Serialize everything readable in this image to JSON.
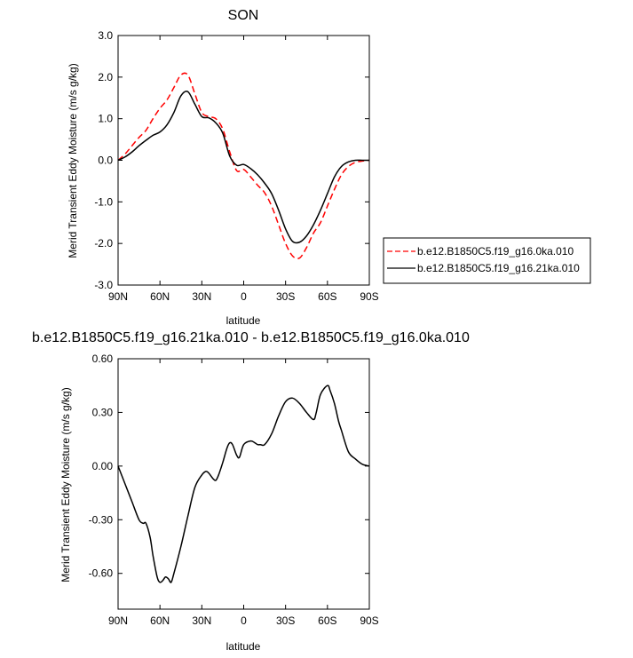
{
  "chart_data": [
    {
      "type": "line",
      "title": "SON",
      "xlabel": "latitude",
      "ylabel": "Merid Transient Eddy Moisture (m/s g/kg)",
      "xlim": [
        90,
        -90
      ],
      "ylim": [
        -3.0,
        3.0
      ],
      "x_ticks": [
        90,
        60,
        30,
        0,
        -30,
        -60,
        -90
      ],
      "x_tick_labels": [
        "90N",
        "60N",
        "30N",
        "0",
        "30S",
        "60S",
        "90S"
      ],
      "y_ticks": [
        3.0,
        2.0,
        1.0,
        0.0,
        -1.0,
        -2.0,
        -3.0
      ],
      "y_tick_labels": [
        "3.0",
        "2.0",
        "1.0",
        "0.0",
        "-1.0",
        "-2.0",
        "-3.0"
      ],
      "legend_position": "outside-right",
      "series": [
        {
          "name": "b.e12.B1850C5.f19_g16.0ka.010",
          "color": "#ff0000",
          "dash": "dashed",
          "x": [
            90,
            85,
            80,
            75,
            70,
            65,
            60,
            55,
            50,
            45,
            40,
            35,
            30,
            25,
            20,
            15,
            10,
            5,
            0,
            -5,
            -10,
            -15,
            -20,
            -25,
            -30,
            -35,
            -40,
            -45,
            -50,
            -55,
            -60,
            -65,
            -70,
            -75,
            -80,
            -85,
            -90
          ],
          "values": [
            0.0,
            0.15,
            0.35,
            0.55,
            0.72,
            1.0,
            1.25,
            1.45,
            1.75,
            2.05,
            2.05,
            1.6,
            1.15,
            1.05,
            1.0,
            0.75,
            0.2,
            -0.25,
            -0.22,
            -0.4,
            -0.6,
            -0.78,
            -1.1,
            -1.55,
            -2.0,
            -2.3,
            -2.35,
            -2.1,
            -1.75,
            -1.5,
            -1.1,
            -0.7,
            -0.35,
            -0.15,
            -0.05,
            -0.02,
            0.0
          ]
        },
        {
          "name": "b.e12.B1850C5.f19_g16.21ka.010",
          "color": "#000000",
          "dash": "solid",
          "x": [
            90,
            85,
            80,
            75,
            70,
            65,
            60,
            55,
            50,
            45,
            40,
            35,
            30,
            25,
            20,
            15,
            10,
            5,
            0,
            -5,
            -10,
            -15,
            -20,
            -25,
            -30,
            -35,
            -40,
            -45,
            -50,
            -55,
            -60,
            -65,
            -70,
            -75,
            -80,
            -85,
            -90
          ],
          "values": [
            0.0,
            0.08,
            0.2,
            0.35,
            0.48,
            0.6,
            0.68,
            0.85,
            1.15,
            1.55,
            1.65,
            1.35,
            1.05,
            1.02,
            0.9,
            0.65,
            0.1,
            -0.12,
            -0.1,
            -0.2,
            -0.35,
            -0.55,
            -0.8,
            -1.2,
            -1.65,
            -1.95,
            -1.97,
            -1.82,
            -1.55,
            -1.2,
            -0.8,
            -0.4,
            -0.15,
            -0.04,
            0.0,
            0.0,
            0.0
          ]
        }
      ]
    },
    {
      "type": "line",
      "title": "b.e12.B1850C5.f19_g16.21ka.010 - b.e12.B1850C5.f19_g16.0ka.010",
      "xlabel": "latitude",
      "ylabel": "Merid Transient Eddy Moisture (m/s g/kg)",
      "xlim": [
        90,
        -90
      ],
      "ylim": [
        -0.8,
        0.6
      ],
      "x_ticks": [
        90,
        60,
        30,
        0,
        -30,
        -60,
        -90
      ],
      "x_tick_labels": [
        "90N",
        "60N",
        "30N",
        "0",
        "30S",
        "60S",
        "90S"
      ],
      "y_ticks": [
        0.6,
        0.3,
        0.0,
        -0.3,
        -0.6
      ],
      "y_tick_labels": [
        "0.60",
        "0.30",
        "0.00",
        "-0.30",
        "-0.60"
      ],
      "series": [
        {
          "color": "#000000",
          "dash": "solid",
          "x": [
            90,
            85,
            80,
            75,
            72,
            70,
            67,
            65,
            62,
            60,
            58,
            56,
            54,
            52,
            50,
            45,
            40,
            35,
            30,
            27,
            25,
            22,
            20,
            18,
            15,
            12,
            10,
            8,
            5,
            3,
            0,
            -5,
            -8,
            -10,
            -12,
            -15,
            -20,
            -25,
            -30,
            -35,
            -40,
            -45,
            -50,
            -52,
            -55,
            -60,
            -62,
            -65,
            -68,
            -70,
            -75,
            -80,
            -85,
            -90
          ],
          "values": [
            0.0,
            -0.1,
            -0.2,
            -0.3,
            -0.32,
            -0.32,
            -0.4,
            -0.5,
            -0.62,
            -0.65,
            -0.64,
            -0.62,
            -0.63,
            -0.65,
            -0.6,
            -0.45,
            -0.28,
            -0.12,
            -0.05,
            -0.03,
            -0.04,
            -0.07,
            -0.08,
            -0.05,
            0.02,
            0.1,
            0.13,
            0.12,
            0.06,
            0.05,
            0.12,
            0.14,
            0.13,
            0.12,
            0.12,
            0.12,
            0.18,
            0.28,
            0.36,
            0.38,
            0.35,
            0.3,
            0.26,
            0.3,
            0.4,
            0.45,
            0.42,
            0.35,
            0.25,
            0.2,
            0.08,
            0.04,
            0.01,
            0.0
          ]
        }
      ]
    }
  ]
}
